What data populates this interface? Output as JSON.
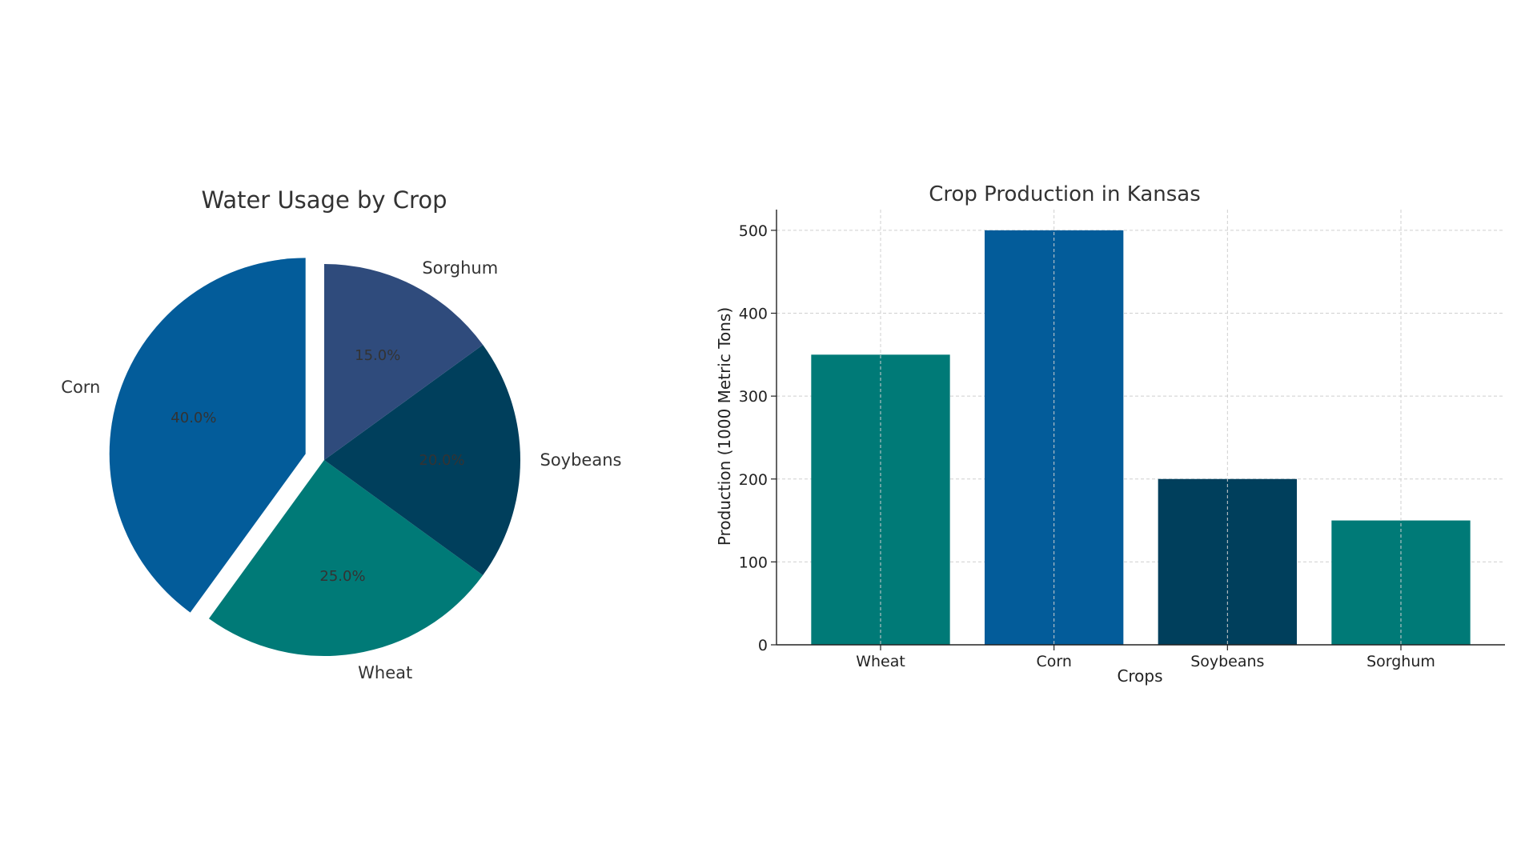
{
  "chart_data": [
    {
      "type": "pie",
      "title": "Water Usage by Crop",
      "slices": [
        {
          "label": "Corn",
          "value": 40.0,
          "pct_label": "40.0%",
          "color": "#035C9A",
          "exploded": true
        },
        {
          "label": "Wheat",
          "value": 25.0,
          "pct_label": "25.0%",
          "color": "#007A77",
          "exploded": false
        },
        {
          "label": "Soybeans",
          "value": 20.0,
          "pct_label": "20.0%",
          "color": "#003F5C",
          "exploded": false
        },
        {
          "label": "Sorghum",
          "value": 15.0,
          "pct_label": "15.0%",
          "color": "#2F4B7C",
          "exploded": false
        }
      ],
      "start_angle_deg": 90,
      "direction": "counterclockwise"
    },
    {
      "type": "bar",
      "title": "Crop Production in Kansas",
      "xlabel": "Crops",
      "ylabel": "Production (1000 Metric Tons)",
      "categories": [
        "Wheat",
        "Corn",
        "Soybeans",
        "Sorghum"
      ],
      "values": [
        350,
        500,
        200,
        150
      ],
      "colors": [
        "#007A77",
        "#035C9A",
        "#003F5C",
        "#007A77"
      ],
      "ylim": [
        0,
        525
      ],
      "yticks": [
        0,
        100,
        200,
        300,
        400,
        500
      ],
      "grid": true
    }
  ]
}
